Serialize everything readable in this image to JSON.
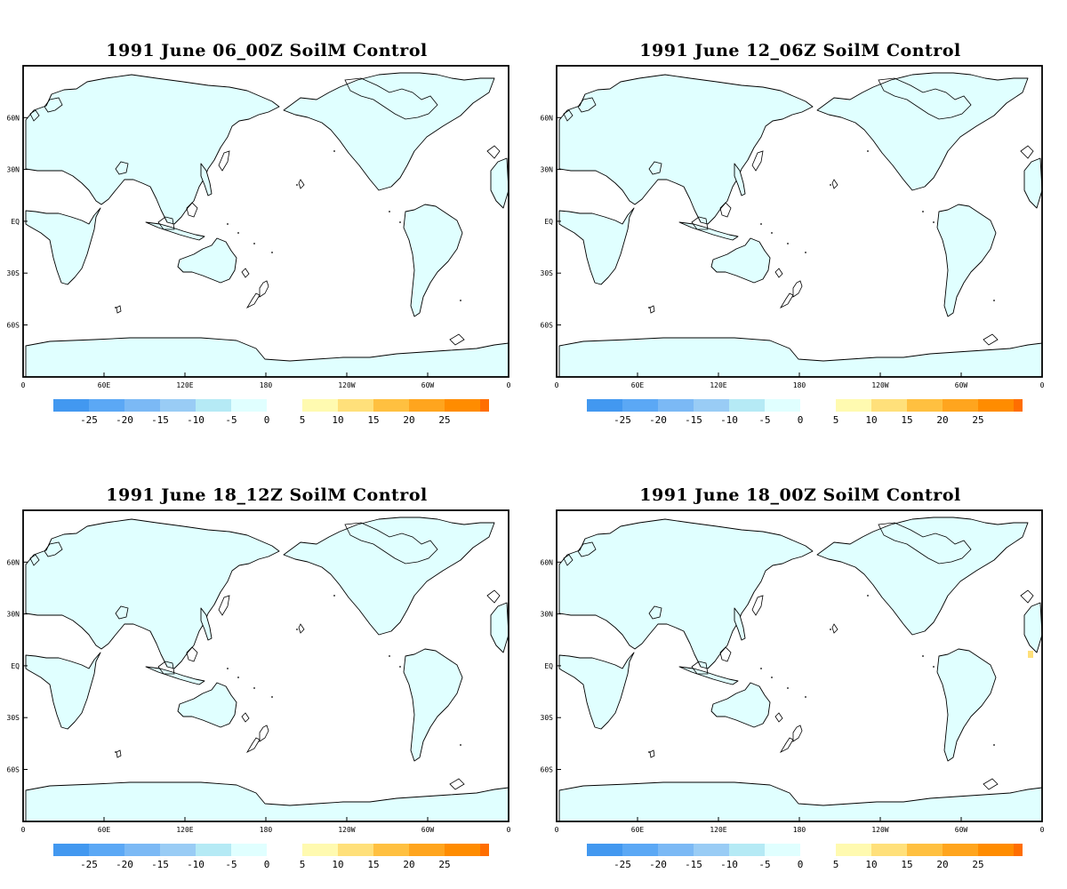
{
  "panels": [
    {
      "title": "1991 June 06_00Z SoilM Control",
      "warm_cell": false
    },
    {
      "title": "1991 June 12_06Z SoilM Control",
      "warm_cell": false
    },
    {
      "title": "1991 June 18_12Z SoilM Control",
      "warm_cell": false
    },
    {
      "title": "1991 June 18_00Z SoilM Control",
      "warm_cell": true
    }
  ],
  "axes": {
    "lat_labels": [
      "60N",
      "30N",
      "EQ",
      "30S",
      "60S"
    ],
    "lon_labels": [
      "0",
      "60E",
      "120E",
      "180",
      "120W",
      "60W",
      "0"
    ]
  },
  "colorbar": {
    "negative": {
      "colors": [
        "#4298f0",
        "#5ba8f5",
        "#7bb9f5",
        "#99ccf5",
        "#b5eaf5",
        "#e0ffff"
      ],
      "labels": [
        "-25",
        "-20",
        "-15",
        "-10",
        "-5",
        "0"
      ]
    },
    "positive": {
      "colors": [
        "#fffab0",
        "#ffe07a",
        "#ffc040",
        "#ffa51e",
        "#ff8c00",
        "#ff6e00"
      ],
      "labels": [
        "5",
        "10",
        "15",
        "20",
        "25"
      ]
    }
  },
  "colors": {
    "land": "#e0ffff",
    "ocean": "#ffffff",
    "coast": "#000000",
    "warm_cell": "#ffe07a"
  }
}
